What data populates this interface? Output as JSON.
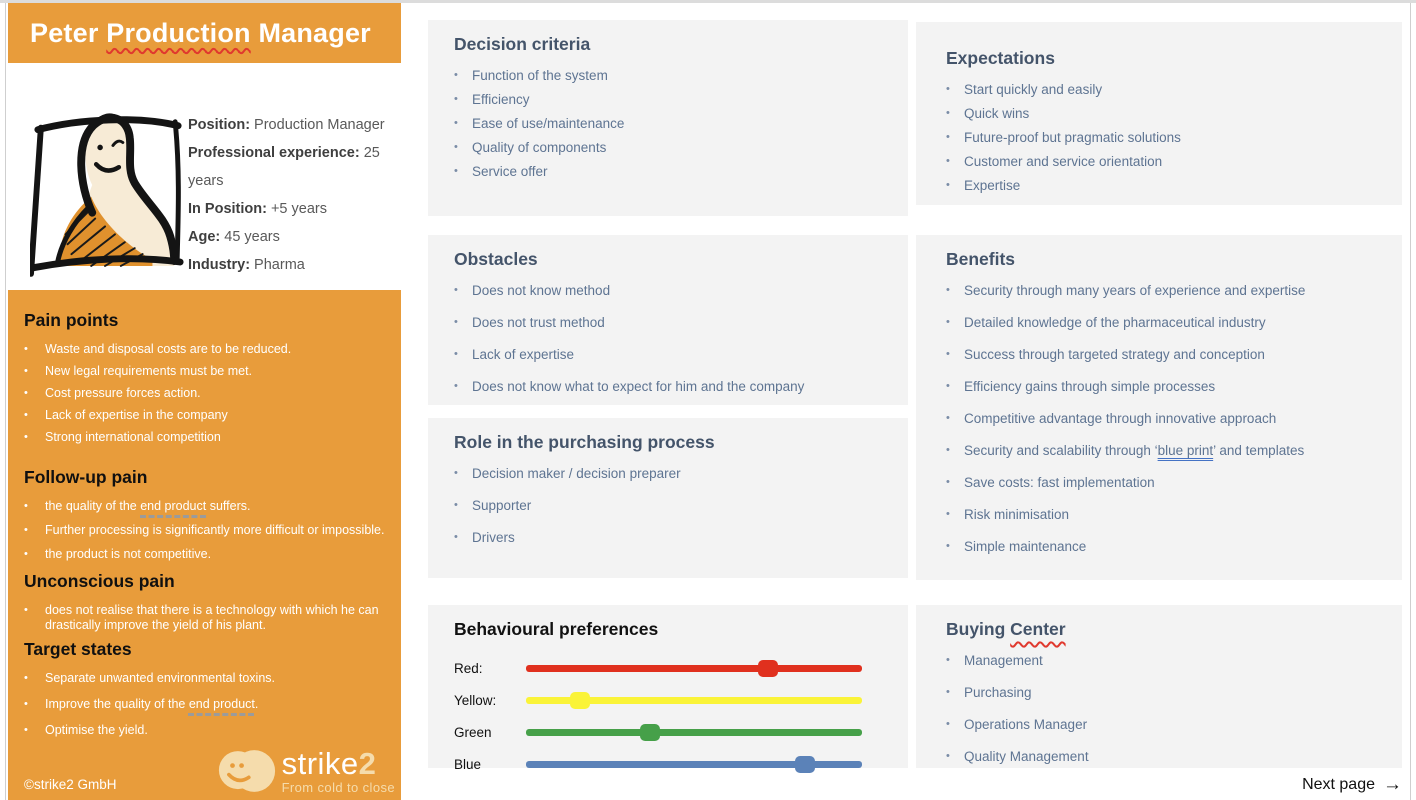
{
  "colors": {
    "orange": "#E89C3B",
    "heading_blue": "#44546A",
    "body_text": "#5E7492",
    "card_bg": "#F3F3F3"
  },
  "title_segments": [
    {
      "t": "Peter "
    },
    {
      "t": "Production",
      "style": "wavy-red"
    },
    {
      "t": " Manager"
    }
  ],
  "profile": {
    "fields": [
      {
        "label": "Position:",
        "value": "Production Manager"
      },
      {
        "label": "Professional experience:",
        "value": "25 years"
      },
      {
        "label": "In Position:",
        "value": "+5 years"
      },
      {
        "label": "Age:",
        "value": "45 years"
      },
      {
        "label": "Industry:",
        "value": "Pharma"
      }
    ]
  },
  "pain_points": {
    "title": "Pain points",
    "items": [
      "Waste and disposal costs are to be reduced.",
      "New legal requirements must be met.",
      "Cost pressure forces action.",
      "Lack of expertise in the company",
      "Strong international competition"
    ]
  },
  "followup_pain": {
    "title": "Follow-up pain",
    "items": [
      [
        {
          "t": "the quality of the "
        },
        {
          "t": "end product",
          "style": "dashed"
        },
        {
          "t": " suffers."
        }
      ],
      "Further processing is significantly more difficult or impossible.",
      "the product is not competitive."
    ]
  },
  "unconscious_pain": {
    "title": "Unconscious pain",
    "items": [
      "does not realise that there is a technology with which he can drastically improve the yield of his plant."
    ]
  },
  "target_states": {
    "title": "Target states",
    "items": [
      "Separate unwanted environmental toxins.",
      [
        {
          "t": "Improve the quality of the "
        },
        {
          "t": "end product",
          "style": "dashed"
        },
        {
          "t": "."
        }
      ],
      "Optimise the yield."
    ]
  },
  "decision_criteria": {
    "title": "Decision criteria",
    "items": [
      "Function of the system",
      "Efficiency",
      "Ease of use/maintenance",
      "Quality of components",
      "Service offer"
    ]
  },
  "obstacles": {
    "title": "Obstacles",
    "items": [
      "Does not know method",
      "Does not trust method",
      "Lack of expertise",
      "Does not know what to expect for him and the company"
    ]
  },
  "role": {
    "title": "Role in the purchasing process",
    "items": [
      "Decision maker / decision preparer",
      "Supporter",
      "Drivers"
    ]
  },
  "behavioural": {
    "title": "Behavioural preferences",
    "sliders": [
      {
        "label": "Red:",
        "color": "#E0301E",
        "value": 72
      },
      {
        "label": "Yellow:",
        "color": "#FAF338",
        "value": 16
      },
      {
        "label": "Green",
        "color": "#46A049",
        "value": 37
      },
      {
        "label": "Blue",
        "color": "#5B82B8",
        "value": 83
      }
    ]
  },
  "expectations": {
    "title": "Expectations",
    "items": [
      "Start quickly and easily",
      "Quick wins",
      "Future-proof but pragmatic solutions",
      "Customer and service orientation",
      "Expertise"
    ]
  },
  "benefits": {
    "title": "Benefits",
    "items": [
      "Security through many years of experience and expertise",
      "Detailed knowledge of the pharmaceutical industry",
      "Success through targeted strategy and conception",
      "Efficiency gains through simple processes",
      "Competitive advantage through innovative approach",
      [
        {
          "t": "Security and scalability through ‘"
        },
        {
          "t": "blue print",
          "style": "double-blue"
        },
        {
          "t": "’ and templates"
        }
      ],
      "Save costs: fast implementation",
      "Risk minimisation",
      "Simple maintenance"
    ]
  },
  "buying_center": {
    "title_segments": [
      {
        "t": "Buying "
      },
      {
        "t": "Center",
        "style": "wavy-red"
      }
    ],
    "items": [
      "Management",
      "Purchasing",
      "Operations Manager",
      "Quality Management"
    ]
  },
  "footer": {
    "copyright": "©strike2 GmbH",
    "logo_text": "strike",
    "logo_number": "2",
    "logo_tagline": "From cold to close",
    "next_page": "Next page",
    "next_arrow": "→"
  }
}
